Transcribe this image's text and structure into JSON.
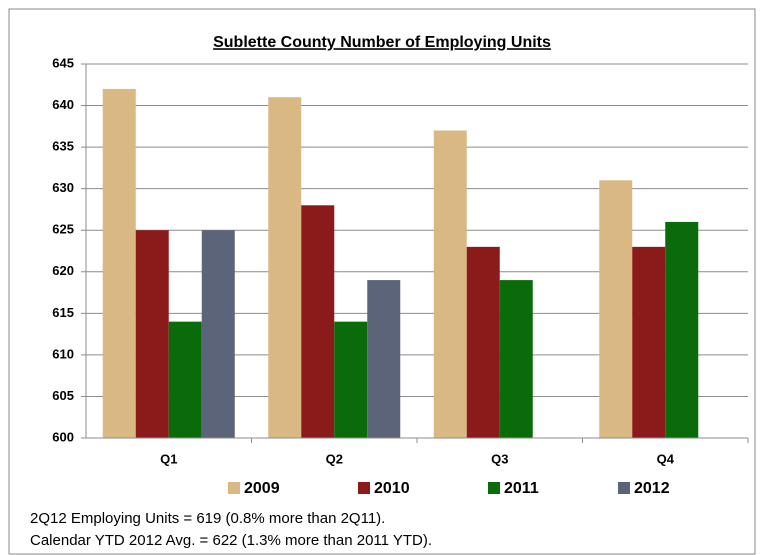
{
  "chart_data": {
    "type": "bar",
    "title": "Sublette County Number of Employing Units",
    "categories": [
      "Q1",
      "Q2",
      "Q3",
      "Q4"
    ],
    "series": [
      {
        "name": "2009",
        "color": "#d9b883",
        "values": [
          642,
          641,
          637,
          631
        ]
      },
      {
        "name": "2010",
        "color": "#8b1a1a",
        "values": [
          625,
          628,
          623,
          623
        ]
      },
      {
        "name": "2011",
        "color": "#0a6b0a",
        "values": [
          614,
          614,
          619,
          626
        ]
      },
      {
        "name": "2012",
        "color": "#5b6478",
        "values": [
          625,
          619,
          null,
          null
        ]
      }
    ],
    "ylim": [
      600,
      645
    ],
    "yticks": [
      600,
      605,
      610,
      615,
      620,
      625,
      630,
      635,
      640,
      645
    ],
    "grid": true,
    "notes": [
      "2Q12 Employing Units = 619 (0.8% more than 2Q11).",
      "Calendar YTD 2012 Avg. = 622 (1.3% more than 2011 YTD)."
    ]
  }
}
